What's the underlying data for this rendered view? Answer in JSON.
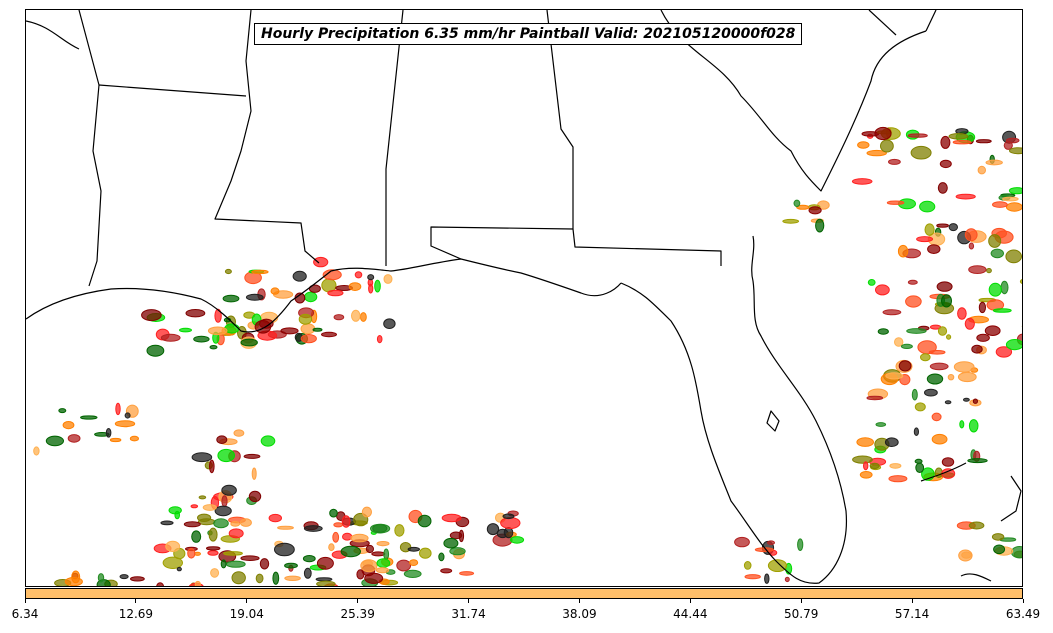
{
  "title": "Hourly Precipitation 6.35 mm/hr Paintball Valid: 202105120000f028",
  "colorbar": {
    "color": "#FFBF6A",
    "ticks": [
      "6.34",
      "12.69",
      "19.04",
      "25.39",
      "31.74",
      "38.09",
      "44.44",
      "50.79",
      "57.14",
      "63.49"
    ]
  },
  "member_colors": [
    "#FFA040",
    "#FF8000",
    "#228B22",
    "#006400",
    "#00DD00",
    "#FF2020",
    "#B22222",
    "#8B0000",
    "#800000",
    "#A0A000",
    "#808000",
    "#FF5020",
    "#202020",
    "#FFB050"
  ]
}
